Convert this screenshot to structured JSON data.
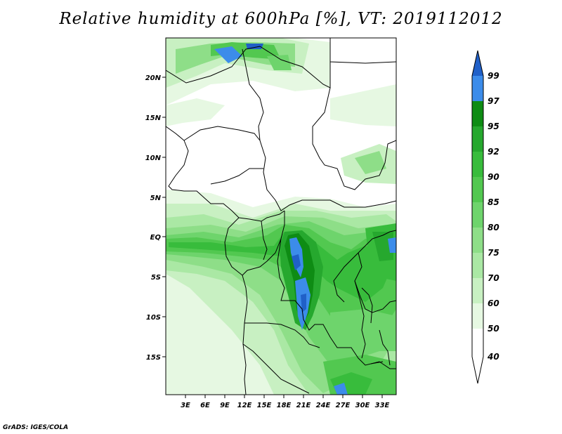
{
  "title": "Relative humidity at 600hPa [%], VT: 2019112012",
  "credit": "GrADS: IGES/COLA",
  "latitude_labels": [
    "20N",
    "15N",
    "10N",
    "5N",
    "EQ",
    "5S",
    "10S",
    "15S"
  ],
  "longitude_labels": [
    "3E",
    "6E",
    "9E",
    "12E",
    "15E",
    "18E",
    "21E",
    "24E",
    "27E",
    "30E",
    "33E"
  ],
  "colorbar": {
    "labels": [
      "99",
      "97",
      "95",
      "92",
      "90",
      "85",
      "80",
      "75",
      "70",
      "60",
      "50",
      "40"
    ],
    "colors": [
      "#2060c8",
      "#3c8cea",
      "#0e8c14",
      "#26a82e",
      "#38bc3c",
      "#52c850",
      "#6ed46c",
      "#8ede88",
      "#aae8a4",
      "#c8f0c2",
      "#e6f8e2",
      "#ffffff"
    ]
  }
}
